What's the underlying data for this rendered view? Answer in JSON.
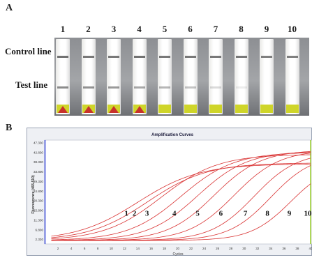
{
  "figure": {
    "panel_a_label": "A",
    "panel_b_label": "B",
    "control_line_label": "Control line",
    "test_line_label": "Test line",
    "strip_numbers": [
      "1",
      "2",
      "3",
      "4",
      "5",
      "6",
      "7",
      "8",
      "9",
      "10"
    ],
    "strips": [
      {
        "control": 0.95,
        "test": 0.8,
        "tab": "red"
      },
      {
        "control": 0.9,
        "test": 0.75,
        "tab": "red"
      },
      {
        "control": 0.9,
        "test": 0.7,
        "tab": "red"
      },
      {
        "control": 0.95,
        "test": 0.6,
        "tab": "red"
      },
      {
        "control": 0.9,
        "test": 0.5,
        "tab": "plain"
      },
      {
        "control": 0.9,
        "test": 0.4,
        "tab": "plain"
      },
      {
        "control": 0.9,
        "test": 0.25,
        "tab": "plain"
      },
      {
        "control": 0.9,
        "test": 0.12,
        "tab": "plain"
      },
      {
        "control": 0.85,
        "test": 0.0,
        "tab": "plain"
      },
      {
        "control": 0.85,
        "test": 0.0,
        "tab": "plain"
      }
    ]
  },
  "chart_data": {
    "type": "line",
    "title": "Amplification Curves",
    "xlabel": "Cycles",
    "ylabel": "Fluorescence (465-510)",
    "xlim": [
      0,
      40
    ],
    "ylim": [
      0.3,
      47.3
    ],
    "xticks": [
      2,
      4,
      6,
      8,
      10,
      12,
      14,
      16,
      18,
      20,
      22,
      24,
      26,
      28,
      30,
      32,
      34,
      36,
      38,
      40
    ],
    "yticks": [
      "2.330",
      "6.800",
      "11.330",
      "15.800",
      "20.330",
      "24.800",
      "29.330",
      "33.800",
      "38.330",
      "42.830",
      "47.330"
    ],
    "ytick_values": [
      2.33,
      6.8,
      11.33,
      15.8,
      20.33,
      24.8,
      29.33,
      33.8,
      38.33,
      42.83,
      47.33
    ],
    "baseline": 1.9,
    "series_color": "#d93333",
    "series": [
      {
        "label": "1",
        "midpoint": 14.0,
        "plateau": 37.5,
        "slope": 0.26
      },
      {
        "label": "2",
        "midpoint": 15.5,
        "plateau": 38.0,
        "slope": 0.27
      },
      {
        "label": "3",
        "midpoint": 17.5,
        "plateau": 42.0,
        "slope": 0.28
      },
      {
        "label": "4",
        "midpoint": 20.5,
        "plateau": 43.0,
        "slope": 0.3
      },
      {
        "label": "5",
        "midpoint": 23.0,
        "plateau": 43.5,
        "slope": 0.32
      },
      {
        "label": "6",
        "midpoint": 25.5,
        "plateau": 44.0,
        "slope": 0.34
      },
      {
        "label": "7",
        "midpoint": 28.5,
        "plateau": 44.0,
        "slope": 0.35
      },
      {
        "label": "8",
        "midpoint": 31.5,
        "plateau": 43.0,
        "slope": 0.37
      },
      {
        "label": "9",
        "midpoint": 34.0,
        "plateau": 42.0,
        "slope": 0.38
      },
      {
        "label": "10",
        "midpoint": 37.0,
        "plateau": 38.0,
        "slope": 0.4
      }
    ],
    "curve_labels": [
      {
        "text": "1",
        "x": 12.3,
        "y": 13.5
      },
      {
        "text": "2",
        "x": 13.5,
        "y": 13.5
      },
      {
        "text": "3",
        "x": 15.4,
        "y": 13.5
      },
      {
        "text": "4",
        "x": 19.5,
        "y": 13.5
      },
      {
        "text": "5",
        "x": 23.0,
        "y": 13.5
      },
      {
        "text": "6",
        "x": 26.5,
        "y": 13.5
      },
      {
        "text": "7",
        "x": 30.2,
        "y": 13.5
      },
      {
        "text": "8",
        "x": 33.5,
        "y": 13.5
      },
      {
        "text": "9",
        "x": 36.8,
        "y": 13.5
      },
      {
        "text": "10",
        "x": 40.7,
        "y": 13.5
      }
    ]
  }
}
